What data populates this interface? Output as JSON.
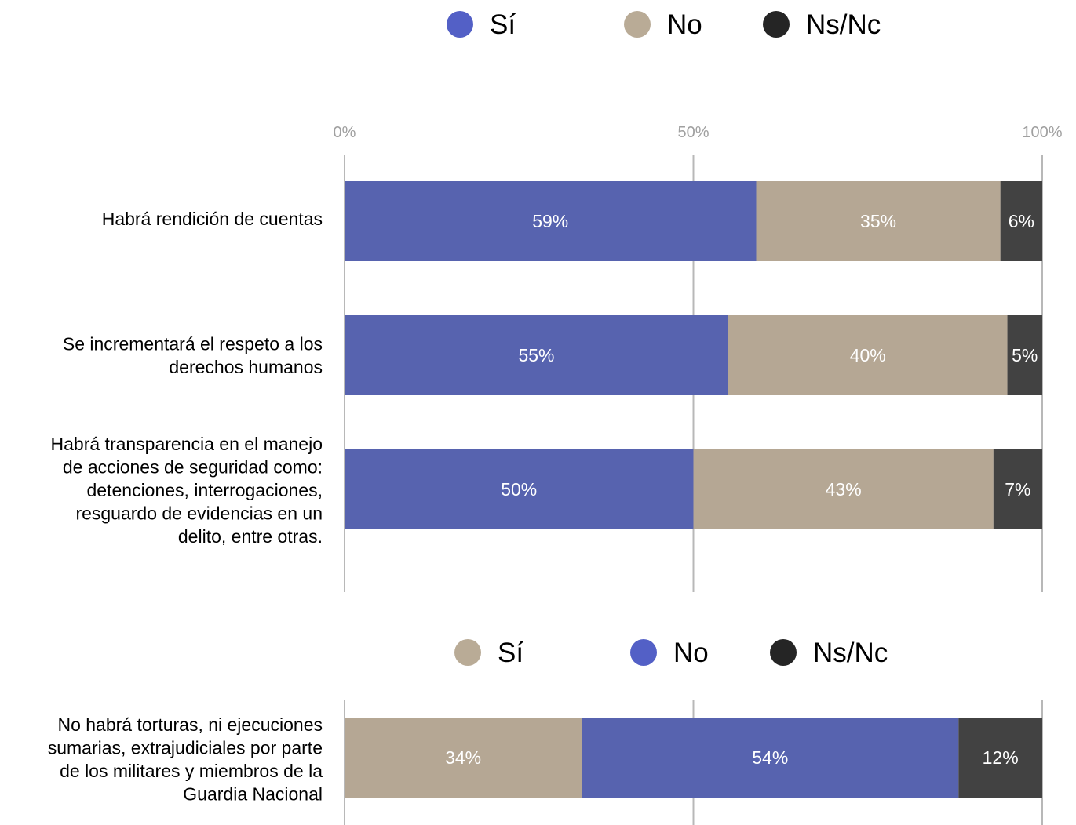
{
  "colors": {
    "blue": "#5763af",
    "tan": "#b5a794",
    "dark": "#424242",
    "legend_blue": "#5360c6",
    "legend_tan": "#b9ab96",
    "legend_dark": "#252525"
  },
  "chart_data": [
    {
      "type": "bar",
      "orientation": "horizontal",
      "stacked": true,
      "legend_position": "top",
      "xlim": [
        0,
        100
      ],
      "xticks": [
        "0%",
        "50%",
        "100%"
      ],
      "grid": true,
      "legend": [
        {
          "name": "Sí",
          "color": "#5360c6"
        },
        {
          "name": "No",
          "color": "#b9ab96"
        },
        {
          "name": "Ns/Nc",
          "color": "#252525"
        }
      ],
      "categories": [
        [
          "Habrá rendición de cuentas"
        ],
        [
          "Se incrementará el respeto a los",
          "derechos humanos"
        ],
        [
          "Habrá transparencia en el manejo",
          "de acciones de seguridad como:",
          "detenciones, interrogaciones,",
          "resguardo de evidencias en un",
          "delito, entre otras."
        ]
      ],
      "series": [
        {
          "name": "Sí",
          "color": "#5763af",
          "values": [
            59,
            55,
            50
          ],
          "labels": [
            "59%",
            "55%",
            "50%"
          ]
        },
        {
          "name": "No",
          "color": "#b5a794",
          "values": [
            35,
            40,
            43
          ],
          "labels": [
            "35%",
            "40%",
            "43%"
          ]
        },
        {
          "name": "Ns/Nc",
          "color": "#424242",
          "values": [
            6,
            5,
            7
          ],
          "labels": [
            "6%",
            "5%",
            "7%"
          ]
        }
      ]
    },
    {
      "type": "bar",
      "orientation": "horizontal",
      "stacked": true,
      "legend_position": "top",
      "xlim": [
        0,
        100
      ],
      "grid": true,
      "legend": [
        {
          "name": "Sí",
          "color": "#b9ab96"
        },
        {
          "name": "No",
          "color": "#5360c6"
        },
        {
          "name": "Ns/Nc",
          "color": "#252525"
        }
      ],
      "categories": [
        [
          "No habrá torturas, ni ejecuciones",
          "sumarias, extrajudiciales por parte",
          "de los militares y miembros de la",
          "Guardia Nacional"
        ]
      ],
      "series": [
        {
          "name": "Sí",
          "color": "#b5a794",
          "values": [
            34
          ],
          "labels": [
            "34%"
          ]
        },
        {
          "name": "No",
          "color": "#5763af",
          "values": [
            54
          ],
          "labels": [
            "54%"
          ]
        },
        {
          "name": "Ns/Nc",
          "color": "#424242",
          "values": [
            12
          ],
          "labels": [
            "12%"
          ]
        }
      ]
    }
  ]
}
